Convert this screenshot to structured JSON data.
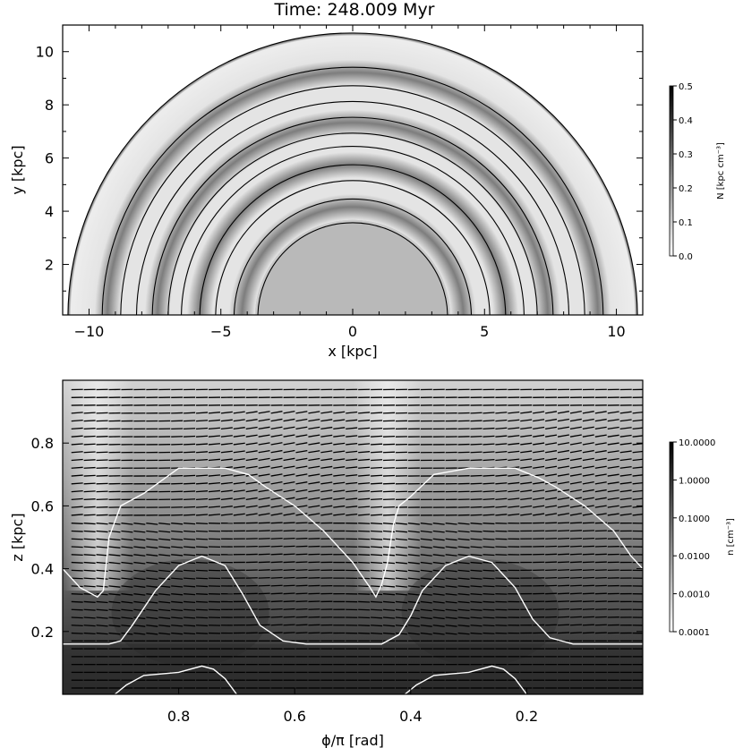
{
  "title": "Time: 248.009 Myr",
  "chart_data": [
    {
      "type": "heatmap",
      "panel": "top",
      "xlabel": "x [kpc]",
      "ylabel": "y [kpc]",
      "xlim": [
        -11,
        11
      ],
      "ylim": [
        0.1,
        11
      ],
      "x_ticks": [
        -10,
        -5,
        0,
        5,
        10
      ],
      "y_ticks": [
        2,
        4,
        6,
        8,
        10
      ],
      "x_tick_labels": [
        "−10",
        "−5",
        "0",
        "5",
        "10"
      ],
      "y_tick_labels": [
        "2",
        "4",
        "6",
        "8",
        "10"
      ],
      "disk_radius": 10.8,
      "central_disk_radius": 3.6,
      "dark_arm_radii": [
        9.3,
        7.4,
        5.8,
        4.2
      ],
      "contour_radii": [
        3.6,
        4.5,
        5.2,
        5.8,
        6.5,
        7.0,
        7.6,
        8.2,
        8.8,
        9.5,
        10.8
      ],
      "colorbar": {
        "label": "N [kpc cm⁻³]",
        "range": [
          0.0,
          0.5
        ],
        "ticks": [
          0.0,
          0.1,
          0.2,
          0.3,
          0.4,
          0.5
        ],
        "tick_labels": [
          "0.0",
          "0.1",
          "0.2",
          "0.3",
          "0.4",
          "0.5"
        ],
        "colors": [
          "#ffffff",
          "#000000"
        ]
      }
    },
    {
      "type": "heatmap",
      "panel": "bottom",
      "xlabel": "ϕ/π [rad]",
      "ylabel": "z [kpc]",
      "xlim": [
        1.0,
        0.0
      ],
      "ylim": [
        0.0,
        1.0
      ],
      "x_ticks": [
        0.8,
        0.6,
        0.4,
        0.2
      ],
      "y_ticks": [
        0.2,
        0.4,
        0.6,
        0.8
      ],
      "x_tick_labels": [
        "0.8",
        "0.6",
        "0.4",
        "0.2"
      ],
      "y_tick_labels": [
        "0.2",
        "0.4",
        "0.6",
        "0.8"
      ],
      "colorbar": {
        "label": "n [cm⁻³]",
        "scale": "log",
        "range": [
          0.0001,
          10.0
        ],
        "ticks": [
          0.0001,
          0.001,
          0.01,
          0.1,
          1.0,
          10.0
        ],
        "tick_labels": [
          "0.0001",
          "0.0010",
          "0.0100",
          "0.1000",
          "1.0000",
          "10.0000"
        ],
        "colors": [
          "#ffffff",
          "#000000"
        ]
      },
      "white_contours": [
        {
          "x": [
            1.0,
            0.97,
            0.94,
            0.93,
            0.92,
            0.9,
            0.86,
            0.8,
            0.72,
            0.68,
            0.65,
            0.6,
            0.55,
            0.5,
            0.47,
            0.46,
            0.45
          ],
          "y": [
            0.4,
            0.34,
            0.31,
            0.33,
            0.5,
            0.6,
            0.64,
            0.72,
            0.72,
            0.7,
            0.66,
            0.6,
            0.52,
            0.42,
            0.34,
            0.31,
            0.35
          ]
        },
        {
          "x": [
            0.45,
            0.44,
            0.43,
            0.42,
            0.4,
            0.36,
            0.3,
            0.22,
            0.18,
            0.15,
            0.1,
            0.05,
            0.02,
            0.0
          ],
          "y": [
            0.35,
            0.42,
            0.54,
            0.6,
            0.63,
            0.7,
            0.72,
            0.72,
            0.69,
            0.66,
            0.6,
            0.52,
            0.44,
            0.4
          ]
        },
        {
          "x": [
            1.0,
            0.92,
            0.9,
            0.88,
            0.84,
            0.8,
            0.76,
            0.72,
            0.69,
            0.66,
            0.62,
            0.58,
            0.5,
            0.45,
            0.42,
            0.4,
            0.38,
            0.34,
            0.3,
            0.26,
            0.22,
            0.19,
            0.16,
            0.12,
            0.08,
            0.0
          ],
          "y": [
            0.16,
            0.16,
            0.17,
            0.22,
            0.33,
            0.41,
            0.44,
            0.41,
            0.32,
            0.22,
            0.17,
            0.16,
            0.16,
            0.16,
            0.19,
            0.25,
            0.33,
            0.41,
            0.44,
            0.42,
            0.34,
            0.24,
            0.18,
            0.16,
            0.16,
            0.16
          ]
        },
        {
          "x": [
            0.91,
            0.89,
            0.86,
            0.8,
            0.76,
            0.74,
            0.72,
            0.7
          ],
          "y": [
            0.0,
            0.03,
            0.06,
            0.07,
            0.09,
            0.08,
            0.05,
            0.0
          ]
        },
        {
          "x": [
            0.41,
            0.39,
            0.36,
            0.3,
            0.26,
            0.24,
            0.22,
            0.2
          ],
          "y": [
            0.0,
            0.03,
            0.06,
            0.07,
            0.09,
            0.08,
            0.05,
            0.0
          ]
        }
      ]
    }
  ]
}
